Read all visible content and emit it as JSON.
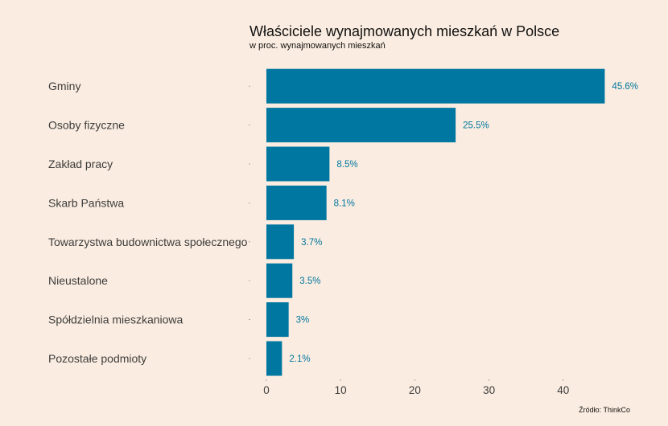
{
  "chart_data": {
    "type": "bar",
    "orientation": "horizontal",
    "title": "Właściciele wynajmowanych mieszkań w Polsce",
    "subtitle": "w proc. wynajmowanych mieszkań",
    "categories": [
      "Gminy",
      "Osoby fizyczne",
      "Zakład pracy",
      "Skarb Państwa",
      "Towarzystwa budownictwa społecznego",
      "Nieustalone",
      "Spółdzielnia mieszkaniowa",
      "Pozostałe podmioty"
    ],
    "values": [
      45.6,
      25.5,
      8.5,
      8.1,
      3.7,
      3.5,
      3.0,
      2.1
    ],
    "value_labels": [
      "45.6%",
      "25.5%",
      "8.5%",
      "8.1%",
      "3.7%",
      "3.5%",
      "3%",
      "2.1%"
    ],
    "xticks": [
      0,
      10,
      20,
      30,
      40
    ],
    "xlim": [
      0,
      46
    ],
    "xlabel": "",
    "ylabel": "",
    "grid": false,
    "caption": "Źródło: ThinkCo",
    "colors": {
      "bar": "#0077a0",
      "value_label": "#0077a0",
      "background": "#faece0"
    }
  }
}
